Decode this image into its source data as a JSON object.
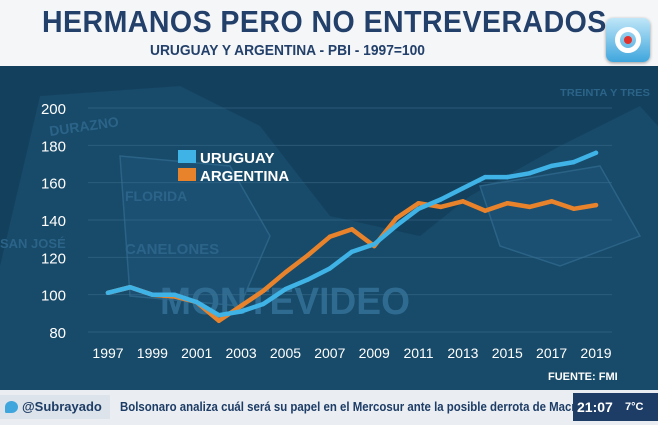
{
  "header": {
    "title": "HERMANOS PERO NO ENTREVERADOS",
    "subtitle": "URUGUAY Y ARGENTINA - PBI - 1997=100"
  },
  "source": "FUENTE: FMI",
  "background_map_labels": [
    "DURAZNO",
    "FLORIDA",
    "CANELONES",
    "MONTEVIDEO",
    "SAN JOSÉ",
    "TREINTA Y TRES"
  ],
  "chart_data": {
    "type": "line",
    "title": "HERMANOS PERO NO ENTREVERADOS",
    "subtitle": "URUGUAY Y ARGENTINA - PBI - 1997=100",
    "xlabel": "",
    "ylabel": "",
    "x": [
      1997,
      1998,
      1999,
      2000,
      2001,
      2002,
      2003,
      2004,
      2005,
      2006,
      2007,
      2008,
      2009,
      2010,
      2011,
      2012,
      2013,
      2014,
      2015,
      2016,
      2017,
      2018,
      2019
    ],
    "x_ticks": [
      "1997",
      "1999",
      "2001",
      "2003",
      "2005",
      "2007",
      "2009",
      "2011",
      "2013",
      "2015",
      "2017",
      "2019"
    ],
    "y_ticks": [
      "80",
      "100",
      "120",
      "140",
      "160",
      "180",
      "200"
    ],
    "xlim": [
      1997,
      2019
    ],
    "ylim": [
      80,
      200
    ],
    "legend_position": "upper-left",
    "series": [
      {
        "name": "URUGUAY",
        "color": "#3fb2e6",
        "values": [
          101,
          104,
          100,
          100,
          96,
          89,
          91,
          95,
          103,
          108,
          114,
          123,
          127,
          137,
          146,
          151,
          157,
          163,
          163,
          165,
          169,
          171,
          176
        ]
      },
      {
        "name": "ARGENTINA",
        "color": "#e8832c",
        "values": [
          101,
          104,
          100,
          99,
          96,
          86,
          94,
          102,
          112,
          121,
          131,
          135,
          126,
          141,
          149,
          147,
          150,
          145,
          149,
          147,
          150,
          146,
          148
        ]
      }
    ]
  },
  "ticker": {
    "handle": "@Subrayado",
    "headline": "Bolsonaro analiza cuál será su papel en el Mercosur ante la posible derrota de Macri.",
    "time": "21:07",
    "weather": "7°C"
  }
}
